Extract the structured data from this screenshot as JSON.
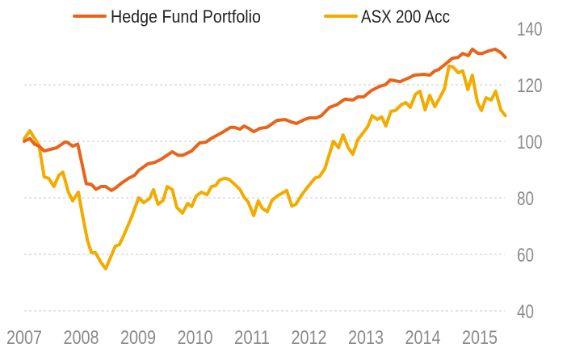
{
  "chart_data": {
    "type": "line",
    "title": "",
    "xlabel": "",
    "ylabel": "",
    "ylim": [
      40,
      140
    ],
    "xlim": [
      2007,
      2015.45
    ],
    "y_ticks": [
      "40",
      "60",
      "80",
      "100",
      "120",
      "140"
    ],
    "x_ticks": [
      "2007",
      "2008",
      "2009",
      "2010",
      "2011",
      "2012",
      "2013",
      "2014",
      "2015"
    ],
    "grid": "horizontal dotted",
    "legend_position": "top",
    "y_axis_side": "right",
    "series": [
      {
        "name": "Hedge Fund Portfolio",
        "color": "#E8641B",
        "points": [
          [
            2007.0,
            100
          ],
          [
            2007.1,
            101
          ],
          [
            2007.18,
            99
          ],
          [
            2007.26,
            98.3
          ],
          [
            2007.35,
            96.6
          ],
          [
            2007.57,
            97.7
          ],
          [
            2007.71,
            99.7
          ],
          [
            2007.75,
            99.7
          ],
          [
            2007.85,
            98.3
          ],
          [
            2007.94,
            99
          ],
          [
            2008.09,
            85
          ],
          [
            2008.18,
            84.7
          ],
          [
            2008.26,
            83
          ],
          [
            2008.35,
            84
          ],
          [
            2008.43,
            84
          ],
          [
            2008.53,
            82.6
          ],
          [
            2008.6,
            83.4
          ],
          [
            2008.7,
            85.1
          ],
          [
            2008.84,
            87
          ],
          [
            2008.94,
            88
          ],
          [
            2009.01,
            89.7
          ],
          [
            2009.17,
            92
          ],
          [
            2009.3,
            92.6
          ],
          [
            2009.41,
            93.7
          ],
          [
            2009.51,
            95.1
          ],
          [
            2009.6,
            96.3
          ],
          [
            2009.7,
            95.1
          ],
          [
            2009.79,
            95.1
          ],
          [
            2009.94,
            96.6
          ],
          [
            2010.08,
            99.4
          ],
          [
            2010.19,
            99.7
          ],
          [
            2010.29,
            101.1
          ],
          [
            2010.4,
            102.3
          ],
          [
            2010.5,
            103.4
          ],
          [
            2010.62,
            104.9
          ],
          [
            2010.69,
            104.9
          ],
          [
            2010.79,
            104.3
          ],
          [
            2010.86,
            105.4
          ],
          [
            2010.94,
            104.6
          ],
          [
            2011.03,
            103.4
          ],
          [
            2011.14,
            104.6
          ],
          [
            2011.26,
            104.9
          ],
          [
            2011.44,
            107.4
          ],
          [
            2011.58,
            107.7
          ],
          [
            2011.68,
            106.9
          ],
          [
            2011.78,
            106.3
          ],
          [
            2011.92,
            107.7
          ],
          [
            2012.01,
            108.3
          ],
          [
            2012.13,
            108.3
          ],
          [
            2012.22,
            109.1
          ],
          [
            2012.36,
            112
          ],
          [
            2012.49,
            112.9
          ],
          [
            2012.63,
            114.9
          ],
          [
            2012.77,
            114.6
          ],
          [
            2012.86,
            115.7
          ],
          [
            2012.96,
            115.7
          ],
          [
            2013.1,
            118
          ],
          [
            2013.24,
            119.4
          ],
          [
            2013.34,
            120
          ],
          [
            2013.43,
            121.7
          ],
          [
            2013.6,
            121.1
          ],
          [
            2013.77,
            122.6
          ],
          [
            2013.85,
            123.4
          ],
          [
            2014.02,
            123.7
          ],
          [
            2014.12,
            123.4
          ],
          [
            2014.21,
            124.9
          ],
          [
            2014.28,
            125.4
          ],
          [
            2014.42,
            127.7
          ],
          [
            2014.52,
            129.4
          ],
          [
            2014.62,
            129.7
          ],
          [
            2014.7,
            131.1
          ],
          [
            2014.8,
            130.3
          ],
          [
            2014.87,
            132.6
          ],
          [
            2014.97,
            131.1
          ],
          [
            2015.04,
            131.1
          ],
          [
            2015.16,
            132
          ],
          [
            2015.27,
            132.6
          ],
          [
            2015.37,
            131.4
          ],
          [
            2015.45,
            129.7
          ]
        ]
      },
      {
        "name": "ASX 200 Acc",
        "color": "#F2AC00",
        "points": [
          [
            2007.0,
            100.9
          ],
          [
            2007.1,
            103.7
          ],
          [
            2007.26,
            98.6
          ],
          [
            2007.35,
            87.4
          ],
          [
            2007.43,
            86.9
          ],
          [
            2007.52,
            84
          ],
          [
            2007.61,
            88
          ],
          [
            2007.68,
            89.1
          ],
          [
            2007.77,
            82.3
          ],
          [
            2007.85,
            78.9
          ],
          [
            2007.95,
            82
          ],
          [
            2008.02,
            74.3
          ],
          [
            2008.11,
            64.9
          ],
          [
            2008.18,
            60.6
          ],
          [
            2008.25,
            60.6
          ],
          [
            2008.35,
            57.1
          ],
          [
            2008.43,
            54.9
          ],
          [
            2008.52,
            59.1
          ],
          [
            2008.6,
            62.9
          ],
          [
            2008.67,
            63.4
          ],
          [
            2008.74,
            66.3
          ],
          [
            2008.89,
            73.4
          ],
          [
            2009.01,
            80
          ],
          [
            2009.1,
            78.3
          ],
          [
            2009.2,
            79.7
          ],
          [
            2009.27,
            82.9
          ],
          [
            2009.35,
            77.7
          ],
          [
            2009.44,
            79.1
          ],
          [
            2009.51,
            84
          ],
          [
            2009.6,
            82.9
          ],
          [
            2009.68,
            76.6
          ],
          [
            2009.78,
            74.6
          ],
          [
            2009.87,
            78
          ],
          [
            2009.94,
            76.9
          ],
          [
            2010.02,
            80.6
          ],
          [
            2010.11,
            82
          ],
          [
            2010.21,
            81.1
          ],
          [
            2010.29,
            84
          ],
          [
            2010.36,
            84.3
          ],
          [
            2010.43,
            86.3
          ],
          [
            2010.52,
            86.9
          ],
          [
            2010.59,
            86.6
          ],
          [
            2010.69,
            84.9
          ],
          [
            2010.79,
            82.9
          ],
          [
            2010.86,
            80.3
          ],
          [
            2010.93,
            78.6
          ],
          [
            2011.03,
            73.7
          ],
          [
            2011.11,
            78.9
          ],
          [
            2011.18,
            76.3
          ],
          [
            2011.27,
            75.1
          ],
          [
            2011.35,
            79.1
          ],
          [
            2011.44,
            80.6
          ],
          [
            2011.61,
            82.6
          ],
          [
            2011.7,
            77.1
          ],
          [
            2011.77,
            77.7
          ],
          [
            2011.87,
            80.9
          ],
          [
            2011.96,
            83.4
          ],
          [
            2012.11,
            87.1
          ],
          [
            2012.18,
            87.4
          ],
          [
            2012.28,
            90.3
          ],
          [
            2012.43,
            100
          ],
          [
            2012.52,
            97.7
          ],
          [
            2012.6,
            102.3
          ],
          [
            2012.69,
            97.7
          ],
          [
            2012.77,
            95.4
          ],
          [
            2012.86,
            100.6
          ],
          [
            2013.03,
            105.1
          ],
          [
            2013.11,
            109.1
          ],
          [
            2013.2,
            107.7
          ],
          [
            2013.28,
            108.6
          ],
          [
            2013.35,
            105.4
          ],
          [
            2013.44,
            110.6
          ],
          [
            2013.52,
            110.9
          ],
          [
            2013.62,
            112.9
          ],
          [
            2013.7,
            113.7
          ],
          [
            2013.78,
            112
          ],
          [
            2013.87,
            116.6
          ],
          [
            2013.95,
            117.7
          ],
          [
            2014.04,
            111.1
          ],
          [
            2014.12,
            116.3
          ],
          [
            2014.21,
            112.3
          ],
          [
            2014.29,
            115.1
          ],
          [
            2014.38,
            118.6
          ],
          [
            2014.46,
            126.6
          ],
          [
            2014.53,
            126.3
          ],
          [
            2014.62,
            124.3
          ],
          [
            2014.7,
            124.9
          ],
          [
            2014.79,
            118.3
          ],
          [
            2014.87,
            123.4
          ],
          [
            2014.96,
            113.7
          ],
          [
            2015.03,
            110.9
          ],
          [
            2015.11,
            115.4
          ],
          [
            2015.2,
            114.6
          ],
          [
            2015.28,
            117.7
          ],
          [
            2015.37,
            111.1
          ],
          [
            2015.45,
            109.1
          ]
        ]
      }
    ]
  }
}
